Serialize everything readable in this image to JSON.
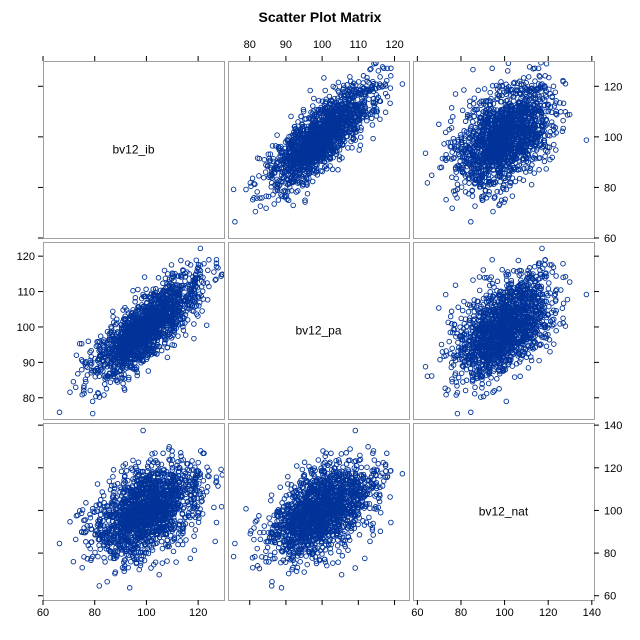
{
  "title": "Scatter Plot Matrix",
  "colors": {
    "marker": "#003399",
    "frame": "#a0a0a0",
    "background": "#ffffff"
  },
  "chart_data": {
    "type": "scatter",
    "title": "Scatter Plot Matrix",
    "variables": [
      "bv12_ib",
      "bv12_pa",
      "bv12_nat"
    ],
    "marker": "open-circle",
    "grid": false,
    "axes": {
      "bv12_ib": {
        "range": [
          60,
          130
        ],
        "ticks": [
          60,
          80,
          100,
          120
        ]
      },
      "bv12_pa": {
        "range": [
          74,
          124
        ],
        "ticks": [
          80,
          90,
          100,
          110,
          120
        ]
      },
      "bv12_nat": {
        "range": [
          58,
          141
        ],
        "ticks": [
          60,
          80,
          100,
          120,
          140
        ]
      }
    },
    "tick_labels": {
      "top": [
        80,
        90,
        100,
        110,
        120
      ],
      "bottom_col0": [
        60,
        80,
        100,
        120
      ],
      "bottom_col2": [
        60,
        80,
        100,
        120,
        140
      ],
      "left_row1": [
        80,
        90,
        100,
        110,
        120
      ],
      "right_row0": [
        60,
        80,
        100,
        120
      ],
      "right_row2": [
        60,
        80,
        100,
        120,
        140
      ]
    },
    "statistics": {
      "bv12_ib": {
        "mean": 100,
        "sd": 10
      },
      "bv12_pa": {
        "mean": 100,
        "sd": 7
      },
      "bv12_nat": {
        "mean": 100,
        "sd": 11
      },
      "correlations": {
        "ib_pa": 0.8,
        "ib_nat": 0.45,
        "pa_nat": 0.5
      }
    }
  }
}
